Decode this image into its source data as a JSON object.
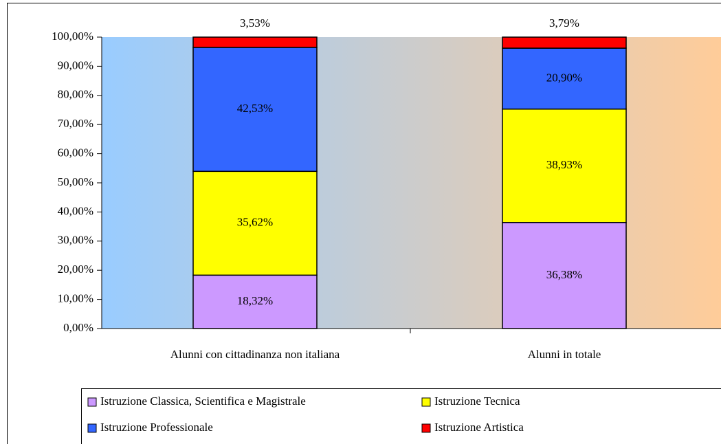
{
  "chart_data": {
    "type": "stacked-bar",
    "categories": [
      "Alunni con cittadinanza non italiana",
      "Alunni in totale"
    ],
    "series": [
      {
        "name": "Istruzione Classica, Scientifica e Magistrale",
        "color": "#cc99ff",
        "values": [
          18.32,
          36.38
        ],
        "value_labels": [
          "18,32%",
          "36,38%"
        ]
      },
      {
        "name": "Istruzione Tecnica",
        "color": "#ffff00",
        "values": [
          35.62,
          38.93
        ],
        "value_labels": [
          "35,62%",
          "38,93%"
        ]
      },
      {
        "name": "Istruzione Professionale",
        "color": "#3366ff",
        "values": [
          42.53,
          20.9
        ],
        "value_labels": [
          "42,53%",
          "20,90%"
        ]
      },
      {
        "name": "Istruzione Artistica",
        "color": "#ff0000",
        "values": [
          3.53,
          3.79
        ],
        "value_labels": [
          "3,53%",
          "3,79%"
        ]
      }
    ],
    "ylim": [
      0,
      100
    ],
    "yticks": [
      {
        "value": 0,
        "label": "0,00%"
      },
      {
        "value": 10,
        "label": "10,00%"
      },
      {
        "value": 20,
        "label": "20,00%"
      },
      {
        "value": 30,
        "label": "30,00%"
      },
      {
        "value": 40,
        "label": "40,00%"
      },
      {
        "value": 50,
        "label": "50,00%"
      },
      {
        "value": 60,
        "label": "60,00%"
      },
      {
        "value": 70,
        "label": "70,00%"
      },
      {
        "value": 80,
        "label": "80,00%"
      },
      {
        "value": 90,
        "label": "90,00%"
      },
      {
        "value": 100,
        "label": "100,00%"
      }
    ],
    "legend": "bottom"
  }
}
